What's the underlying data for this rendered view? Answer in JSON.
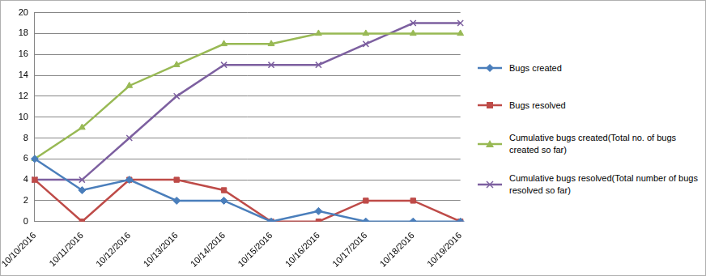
{
  "chart_data": {
    "type": "line",
    "categories": [
      "10/10/2016",
      "10/11/2016",
      "10/12/2016",
      "10/13/2016",
      "10/14/2016",
      "10/15/2016",
      "10/16/2016",
      "10/17/2016",
      "10/18/2016",
      "10/19/2016"
    ],
    "series": [
      {
        "name": "Bugs created",
        "color": "#4a7ebb",
        "marker": "diamond",
        "values": [
          6,
          3,
          4,
          2,
          2,
          0,
          1,
          0,
          0,
          0
        ]
      },
      {
        "name": "Bugs resolved",
        "color": "#be4b48",
        "marker": "square",
        "values": [
          4,
          0,
          4,
          4,
          3,
          0,
          0,
          2,
          2,
          0
        ]
      },
      {
        "name": "Cumulative bugs created(Total no. of bugs created so far)",
        "color": "#98b954",
        "marker": "triangle",
        "values": [
          6,
          9,
          13,
          15,
          17,
          17,
          18,
          18,
          18,
          18
        ]
      },
      {
        "name": "Cumulative bugs resolved(Total number of bugs resolved so far)",
        "color": "#7d60a0",
        "marker": "x",
        "values": [
          4,
          4,
          8,
          12,
          15,
          15,
          15,
          17,
          19,
          19
        ]
      }
    ],
    "ylim": [
      0,
      20
    ],
    "yticks": [
      0,
      2,
      4,
      6,
      8,
      10,
      12,
      14,
      16,
      18,
      20
    ],
    "grid": true,
    "legend": "right"
  }
}
